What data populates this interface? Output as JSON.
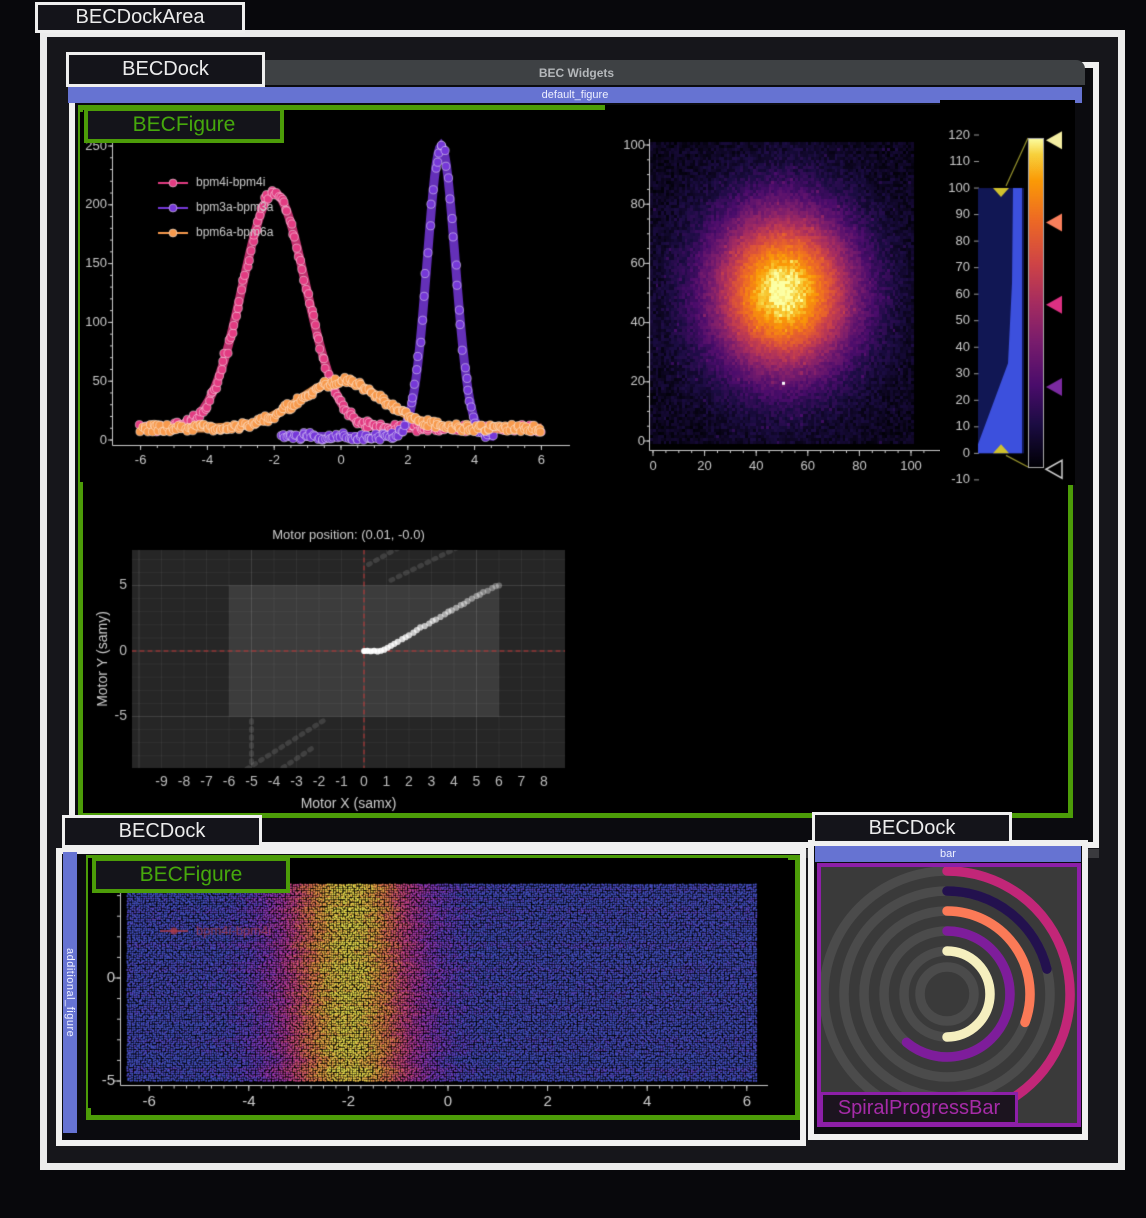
{
  "labels": {
    "dock_area": "BECDockArea",
    "dock": "BECDock",
    "figure": "BECFigure",
    "widgets_title": "BEC Widgets",
    "spiral": "SpiralProgressBar"
  },
  "docks": {
    "default_figure_title": "default_figure",
    "additional_figure_title": "additional_figure",
    "bar_title": "bar"
  },
  "colors": {
    "accent_blue": "#6673d2",
    "accent_green": "#4c9c08",
    "accent_purple": "#8d1fa8",
    "border_white": "#ececec",
    "titlebar_gray": "#3e4144",
    "plot_bg": "#000000",
    "motor_bg": "#262626",
    "tick_text": "#c8c8c8"
  },
  "spiral": {
    "label": "SpiralProgressBar",
    "track_color": "#4b4b4b",
    "background": "#3a3a3a",
    "rings": [
      {
        "radius": 123,
        "color": "#c22678",
        "sweep_deg": 146
      },
      {
        "radius": 103,
        "color": "#23114e",
        "sweep_deg": 76
      },
      {
        "radius": 83,
        "color": "#fb7a57",
        "sweep_deg": 110
      },
      {
        "radius": 63,
        "color": "#7e1d9b",
        "sweep_deg": 220
      },
      {
        "radius": 43,
        "color": "#f5efbf",
        "sweep_deg": 180
      },
      {
        "radius": 27,
        "color": null,
        "sweep_deg": 0
      }
    ]
  },
  "chart_data": [
    {
      "id": "waveform",
      "type": "line",
      "xticks": [
        -6,
        -4,
        -2,
        0,
        2,
        4,
        6
      ],
      "yticks": [
        0,
        50,
        100,
        150,
        200,
        250
      ],
      "xlim": [
        -6.5,
        6.5
      ],
      "ylim": [
        -5,
        255
      ],
      "legend_position": "top-left",
      "series": [
        {
          "name": "bpm4i-bpm4i",
          "color": "#e23c82",
          "center": -2,
          "sigma": 0.95,
          "amplitude": 200,
          "baseline": 10,
          "peak": 210,
          "xrange": [
            -6,
            6
          ]
        },
        {
          "name": "bpm3a-bpm3a",
          "color": "#7638d8",
          "center": 3,
          "sigma": 0.42,
          "amplitude": 247,
          "baseline": 3,
          "peak": 250,
          "xrange": [
            -1.8,
            4.6
          ]
        },
        {
          "name": "bpm6a-bpm6a",
          "color": "#f79a4d",
          "center": 0,
          "sigma": 1.25,
          "amplitude": 40,
          "baseline": 10,
          "peak": 50,
          "xrange": [
            -6,
            6
          ]
        }
      ]
    },
    {
      "id": "heatmap",
      "type": "heatmap",
      "xticks": [
        0,
        20,
        40,
        60,
        80,
        100
      ],
      "yticks": [
        0,
        20,
        40,
        60,
        80,
        100
      ],
      "grid_size": 100,
      "blob": {
        "cx": 50,
        "cy": 50,
        "sigma": 19,
        "peak": 115
      },
      "noise": 12,
      "outlier_point": {
        "x": 50,
        "y": 20
      },
      "colormap": "inferno",
      "colorbar": {
        "ticks": [
          120,
          110,
          100,
          90,
          80,
          70,
          60,
          50,
          40,
          30,
          20,
          10,
          0,
          -10
        ],
        "region": [
          0,
          100
        ],
        "gradient_markers": [
          {
            "value": 118,
            "color": "#f4eea2",
            "filled": true
          },
          {
            "value": 87,
            "color": "#fa7f5c",
            "filled": true
          },
          {
            "value": 56,
            "color": "#dc3082",
            "filled": true
          },
          {
            "value": 25,
            "color": "#7b2aa0",
            "filled": true
          },
          {
            "value": -6,
            "color": "#cccccc",
            "filled": false
          }
        ]
      }
    },
    {
      "id": "motor_map",
      "type": "scatter",
      "title": "Motor position: (0.01, -0.0)",
      "xlabel": "Motor X (samx)",
      "ylabel": "Motor Y (samy)",
      "xticks": [
        -9,
        -8,
        -7,
        -6,
        -5,
        -4,
        -3,
        -2,
        -1,
        0,
        1,
        2,
        3,
        4,
        5,
        6,
        7,
        8
      ],
      "yticks": [
        -5,
        0,
        5
      ],
      "limits_rect": [
        -6,
        -5,
        6,
        5
      ],
      "crosshair": [
        0,
        0
      ],
      "trail": [
        [
          6,
          5
        ],
        [
          5.85,
          4.95
        ],
        [
          5.7,
          4.8
        ],
        [
          5.5,
          4.6
        ],
        [
          5.3,
          4.5
        ],
        [
          5.15,
          4.3
        ],
        [
          5,
          4.2
        ],
        [
          4.8,
          4
        ],
        [
          4.6,
          3.8
        ],
        [
          4.45,
          3.6
        ],
        [
          4.3,
          3.5
        ],
        [
          4.1,
          3.3
        ],
        [
          3.9,
          3.1
        ],
        [
          3.75,
          3
        ],
        [
          3.6,
          2.8
        ],
        [
          3.4,
          2.6
        ],
        [
          3.2,
          2.4
        ],
        [
          3.05,
          2.3
        ],
        [
          2.9,
          2.1
        ],
        [
          2.7,
          1.9
        ],
        [
          2.5,
          1.8
        ],
        [
          2.35,
          1.6
        ],
        [
          2.2,
          1.4
        ],
        [
          2,
          1.2
        ],
        [
          1.85,
          1.05
        ],
        [
          1.7,
          0.9
        ],
        [
          1.5,
          0.7
        ],
        [
          1.35,
          0.55
        ],
        [
          1.2,
          0.4
        ],
        [
          1.05,
          0.25
        ],
        [
          0.9,
          0.1
        ],
        [
          0.75,
          0.02
        ],
        [
          0.6,
          -0.03
        ],
        [
          0.45,
          0.02
        ],
        [
          0.3,
          -0.02
        ],
        [
          0.15,
          0.01
        ],
        [
          0.01,
          0
        ]
      ],
      "ghost_trails": [
        [
          [
            0.2,
            6.6
          ],
          [
            2.6,
            8.9
          ]
        ],
        [
          [
            1.2,
            5.4
          ],
          [
            5.0,
            8.6
          ]
        ],
        [
          [
            -5.2,
            -9.0
          ],
          [
            -1.6,
            -5.1
          ]
        ],
        [
          [
            -5,
            -5.3
          ],
          [
            -5,
            -8.8
          ]
        ],
        [
          [
            -3.6,
            -8.9
          ],
          [
            -2.2,
            -7.3
          ]
        ]
      ]
    },
    {
      "id": "scan",
      "type": "scatter-density",
      "xticks": [
        -6,
        -4,
        -2,
        0,
        2,
        4,
        6
      ],
      "yticks": [
        0,
        -5
      ],
      "xlim": [
        -6.2,
        6.2
      ],
      "ylim": [
        -5.2,
        4.6
      ],
      "band_center": -2,
      "band_sigma": 1.0,
      "legend": [
        {
          "name": "bpm4i-bpm4i",
          "color": "#b33a44"
        }
      ],
      "colormap": "plasma"
    }
  ]
}
